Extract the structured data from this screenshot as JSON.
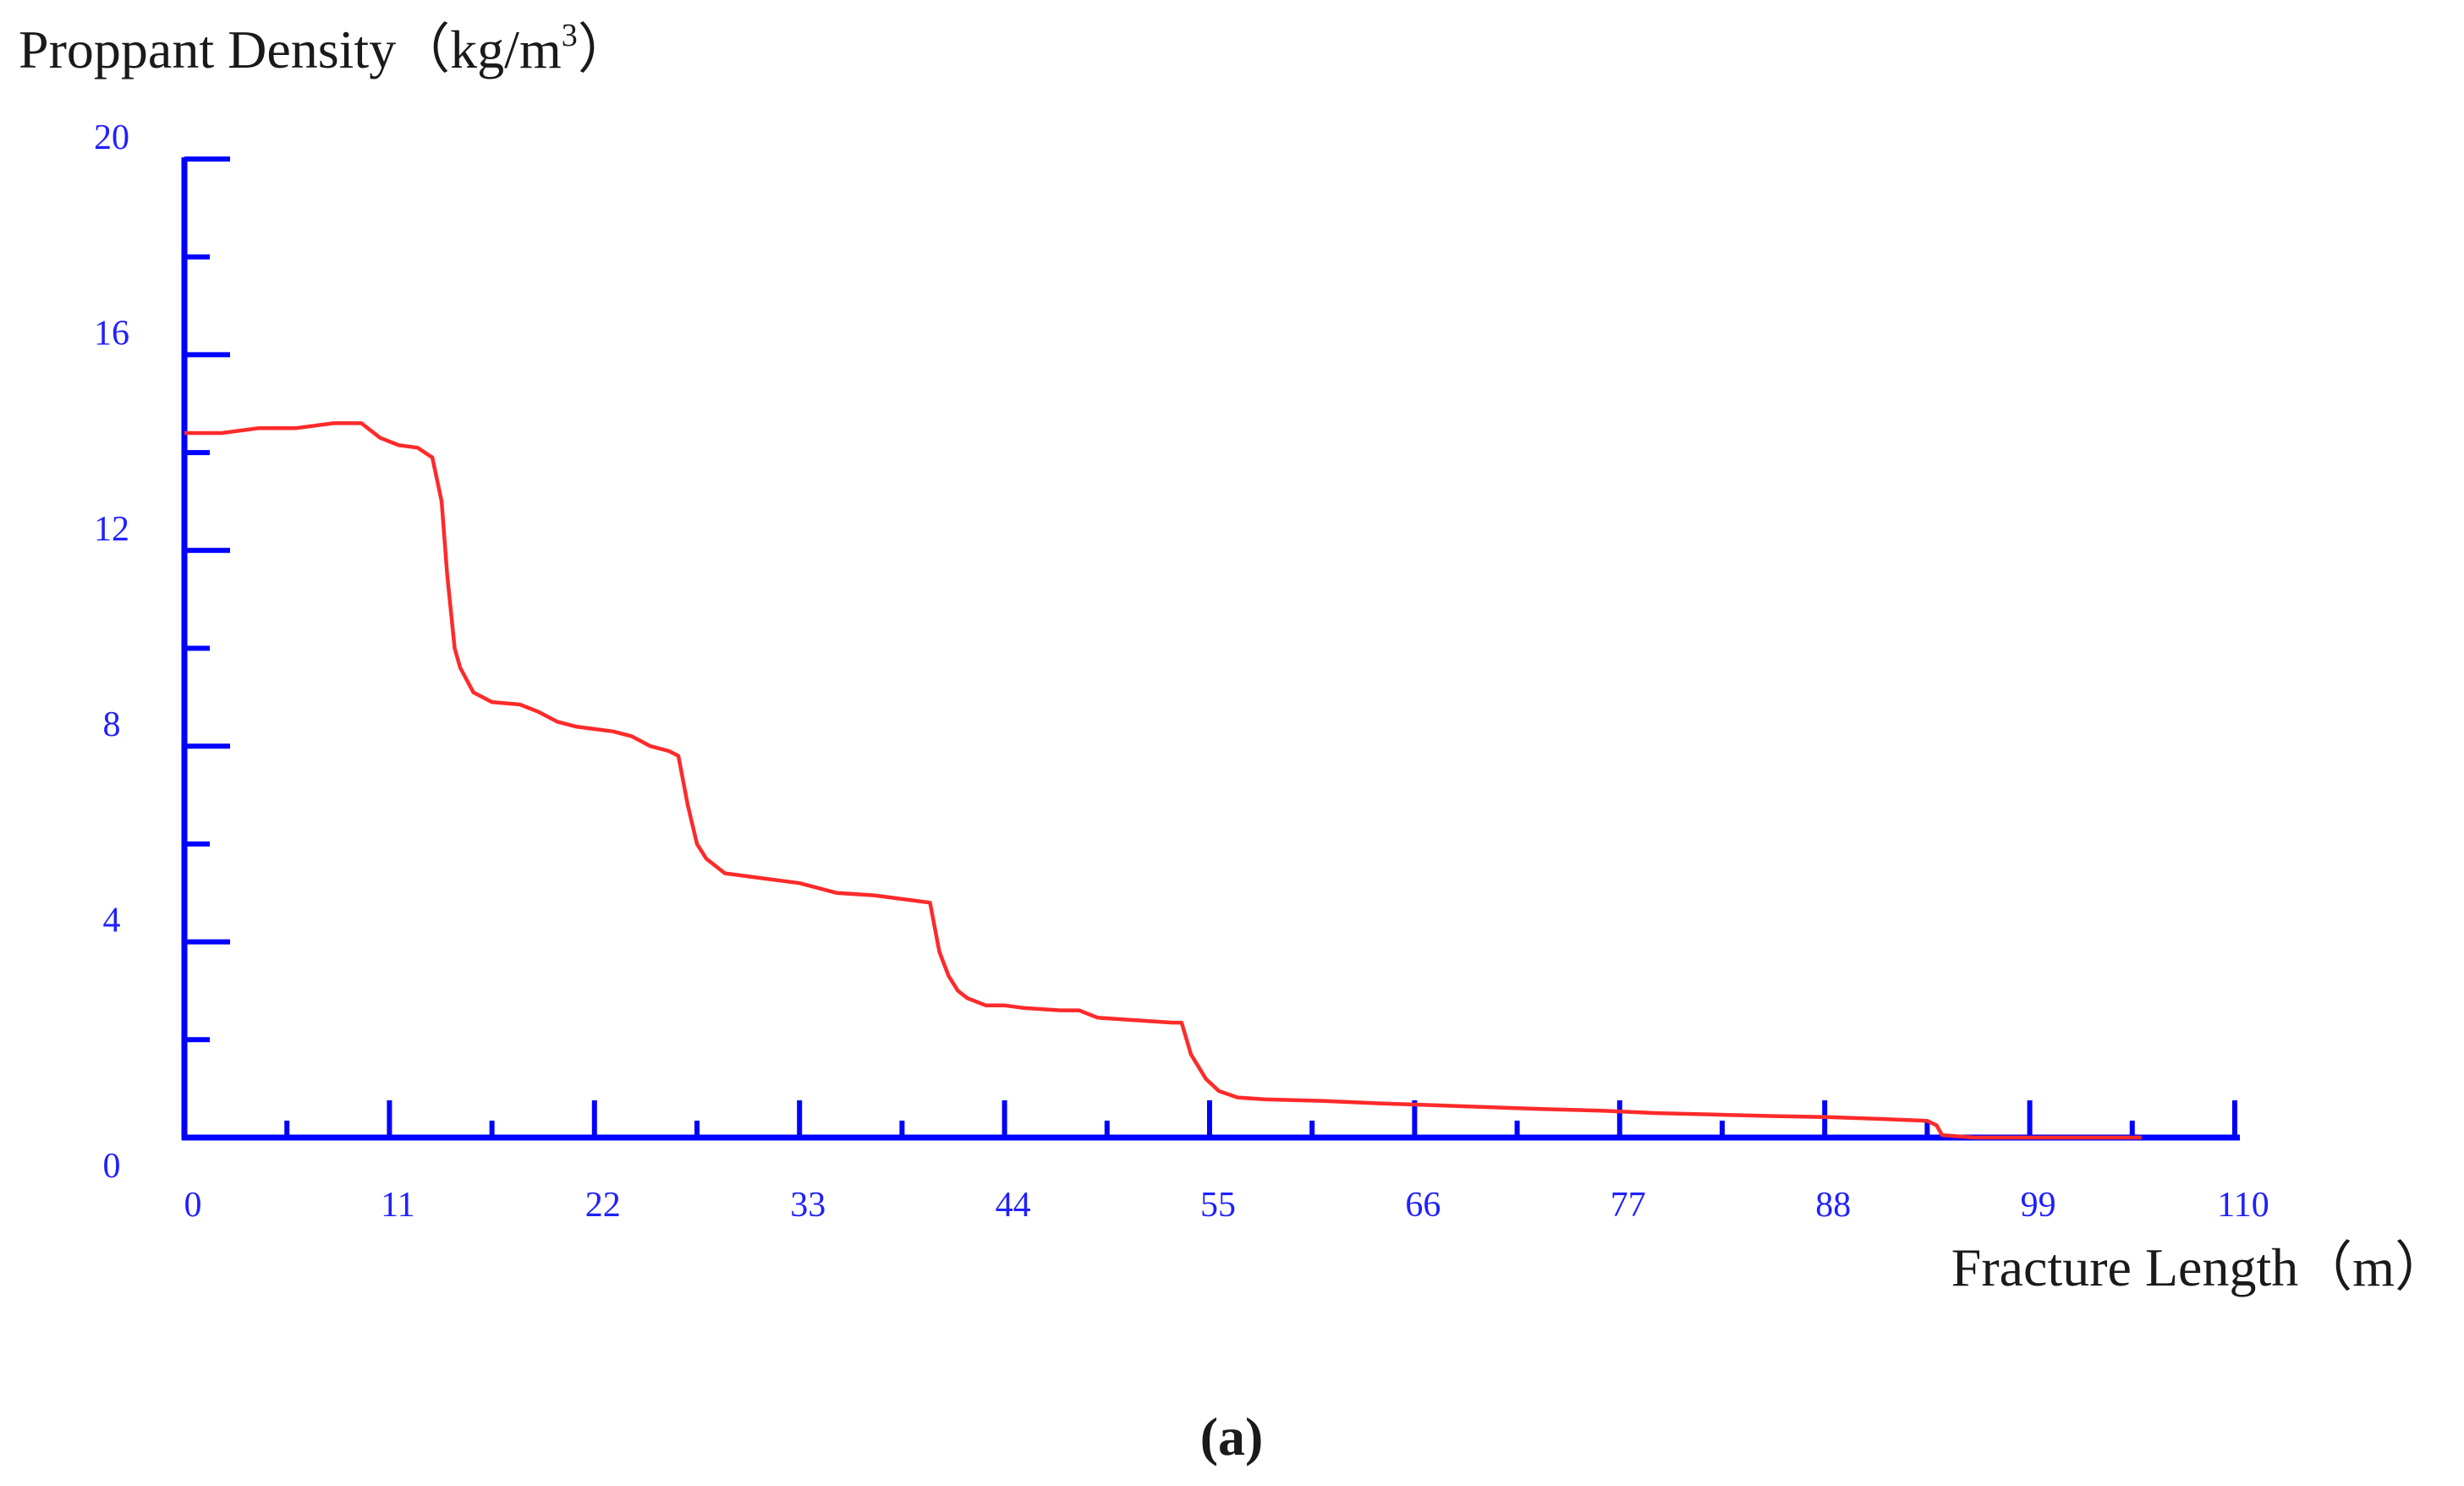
{
  "chart_data": {
    "type": "line",
    "ylabel": "Proppant Density (kg/m3)",
    "ylabel_main": "Proppant Density（kg/m",
    "ylabel_sup": "3",
    "ylabel_close": "）",
    "xlabel": "Fracture Length（m）",
    "panel_label": "(a)",
    "xlim": [
      0,
      110
    ],
    "ylim": [
      0,
      20
    ],
    "x_ticks": [
      0,
      11,
      22,
      33,
      44,
      55,
      66,
      77,
      88,
      99,
      110
    ],
    "y_ticks": [
      0,
      4,
      8,
      12,
      16,
      20
    ],
    "x_minor_step": 5.5,
    "y_minor_step": 2,
    "grid": false,
    "series": [
      {
        "color": "#ff2a2a",
        "x": [
          0,
          2,
          4,
          6,
          8,
          9.5,
          10.5,
          11.5,
          12.5,
          13.3,
          13.8,
          14.1,
          14.5,
          14.8,
          15.5,
          16.5,
          18,
          19,
          20,
          21,
          22,
          23,
          24,
          25,
          26,
          26.5,
          27,
          27.5,
          28,
          29,
          30,
          32,
          33,
          35,
          37,
          39,
          40,
          40.5,
          41,
          41.5,
          42,
          43,
          44,
          45,
          47,
          48,
          49,
          51,
          53,
          53.5,
          54,
          54.8,
          55.5,
          56.5,
          58,
          61,
          64,
          67,
          70,
          73,
          76,
          79,
          82,
          85,
          88,
          91,
          93.5,
          94,
          94.3,
          96,
          100,
          105
        ],
        "y": [
          14.4,
          14.4,
          14.5,
          14.5,
          14.6,
          14.6,
          14.3,
          14.15,
          14.1,
          13.9,
          13.0,
          11.5,
          10.0,
          9.6,
          9.1,
          8.9,
          8.85,
          8.7,
          8.5,
          8.4,
          8.35,
          8.3,
          8.2,
          8.0,
          7.9,
          7.8,
          6.8,
          6.0,
          5.7,
          5.4,
          5.35,
          5.25,
          5.2,
          5.0,
          4.95,
          4.85,
          4.8,
          3.8,
          3.3,
          3.0,
          2.85,
          2.7,
          2.7,
          2.65,
          2.6,
          2.6,
          2.45,
          2.4,
          2.35,
          2.35,
          1.7,
          1.2,
          0.95,
          0.82,
          0.78,
          0.75,
          0.7,
          0.66,
          0.62,
          0.58,
          0.55,
          0.5,
          0.47,
          0.44,
          0.42,
          0.38,
          0.34,
          0.25,
          0.05,
          0.0,
          0.0,
          0.0
        ]
      }
    ]
  }
}
